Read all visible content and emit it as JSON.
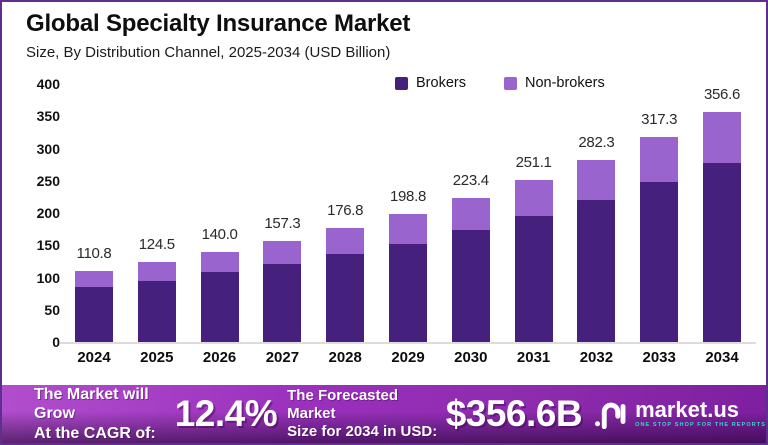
{
  "header": {
    "title": "Global Specialty Insurance Market",
    "subtitle": "Size, By Distribution Channel, 2025-2034 (USD Billion)"
  },
  "chart_data": {
    "type": "bar",
    "stacked": true,
    "categories": [
      "2024",
      "2025",
      "2026",
      "2027",
      "2028",
      "2029",
      "2030",
      "2031",
      "2032",
      "2033",
      "2034"
    ],
    "series": [
      {
        "name": "Brokers",
        "color": "#45207d",
        "values": [
          86.0,
          95.0,
          108.0,
          121.0,
          137.0,
          152.0,
          174.0,
          196.0,
          220.0,
          248.0,
          278.0
        ]
      },
      {
        "name": "Non-brokers",
        "color": "#9a64cf",
        "values": [
          24.8,
          29.5,
          32.0,
          36.3,
          39.8,
          46.8,
          49.4,
          55.1,
          62.3,
          69.3,
          78.6
        ]
      }
    ],
    "totals": [
      110.8,
      124.5,
      140.0,
      157.3,
      176.8,
      198.8,
      223.4,
      251.1,
      282.3,
      317.3,
      356.6
    ],
    "total_labels": [
      "110.8",
      "124.5",
      "140.0",
      "157.3",
      "176.8",
      "198.8",
      "223.4",
      "251.1",
      "282.3",
      "317.3",
      "356.6"
    ],
    "title": "Global Specialty Insurance Market Size, By Distribution Channel, 2025-2034 (USD Billion)",
    "xlabel": "",
    "ylabel": "",
    "ylim": [
      0,
      400
    ],
    "ytick_step": 50,
    "grid": false,
    "legend_position": "top"
  },
  "banner": {
    "cagr_label_line1": "The Market will Grow",
    "cagr_label_line2": "At the CAGR of:",
    "cagr_value": "12.4%",
    "forecast_label_line1": "The Forecasted Market",
    "forecast_label_line2": "Size for 2034 in USD:",
    "forecast_value": "$356.6B",
    "brand": "market.us",
    "brand_tagline": "ONE STOP SHOP FOR THE REPORTS"
  },
  "colors": {
    "border": "#5f2f8c",
    "banner_teal": "#39d6cd",
    "axis_line": "#dcdcdc"
  }
}
